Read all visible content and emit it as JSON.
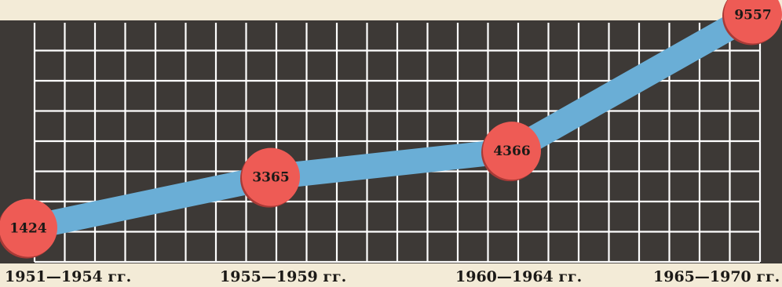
{
  "chart_data": {
    "type": "line",
    "categories": [
      "1951—1954 гг.",
      "1955—1959 гг.",
      "1960—1964 гг.",
      "1965—1970 гг."
    ],
    "values": [
      1424,
      3365,
      4366,
      9557
    ],
    "data_labels": [
      "1424",
      "3365",
      "4366",
      "9557"
    ],
    "ylim": [
      0,
      10000
    ],
    "grid": true,
    "colors": {
      "page": "#f3ebd7",
      "panel": "#3d3936",
      "grid": "#ffffff",
      "line": "#6aaed6",
      "marker": "#ee5b55",
      "marker_shadow": "#a83a36",
      "text": "#1c1a17"
    }
  }
}
